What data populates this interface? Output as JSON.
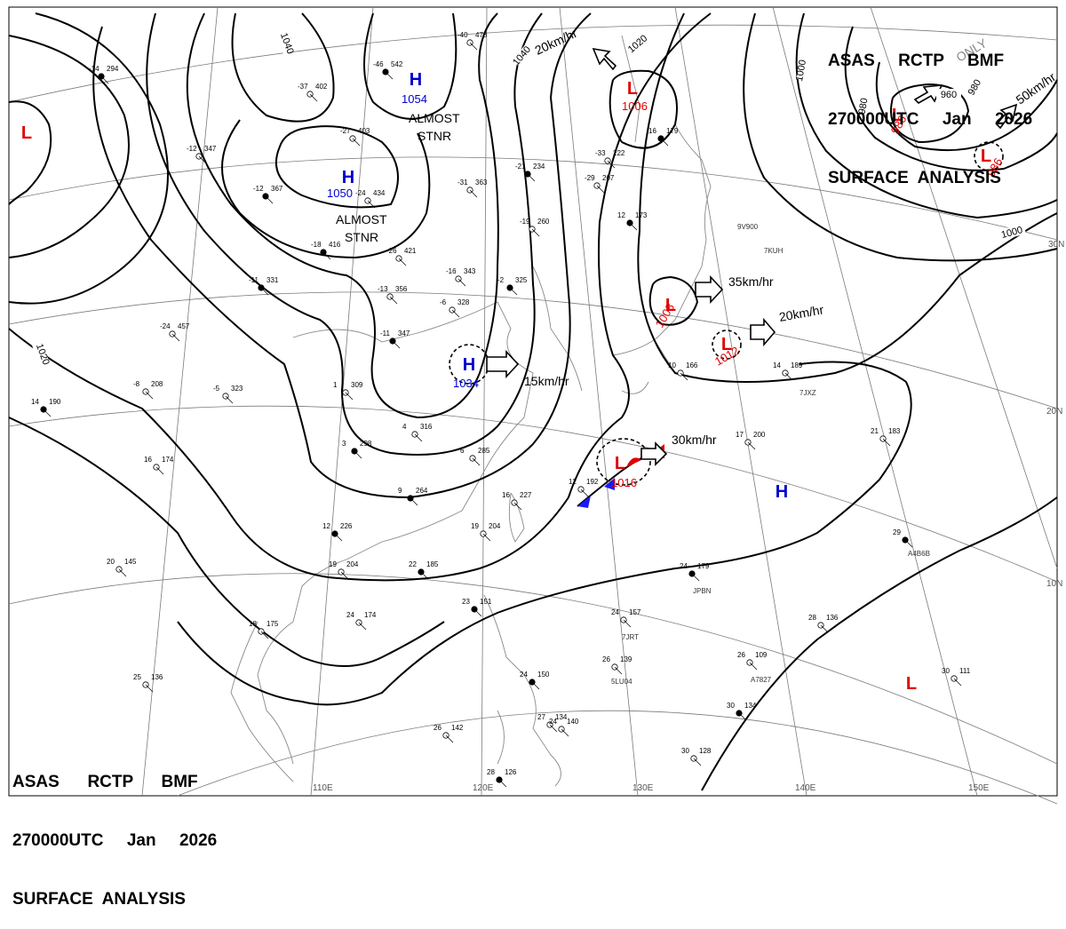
{
  "header": {
    "line1": "ASAS     RCTP     BMF",
    "line2": "270000UTC     Jan     2026",
    "line3": "SURFACE  ANALYSIS"
  },
  "footer": {
    "line1": "ASAS      RCTP      BMF",
    "line2": "270000UTC     Jan     2026",
    "line3": "SURFACE  ANALYSIS"
  },
  "watermark": "ONLY",
  "colors": {
    "low": "#e00000",
    "high": "#0000cc",
    "line": "#000000",
    "grid": "#777777",
    "coast": "#888888"
  },
  "lon_labels": [
    "110E",
    "120E",
    "130E",
    "140E",
    "150E"
  ],
  "lat_labels": [
    "30N",
    "20N",
    "10N"
  ],
  "isobar_labels": [
    "1040",
    "1040",
    "1020",
    "1020",
    "1000",
    "980",
    "980",
    "960",
    "1000"
  ],
  "highs": [
    {
      "letter": "H",
      "value": "1054",
      "note": [
        "ALMOST",
        "STNR"
      ]
    },
    {
      "letter": "H",
      "value": "1050",
      "note": [
        "ALMOST",
        "STNR"
      ]
    },
    {
      "letter": "H",
      "value": "1034",
      "motion": "15km/hr"
    },
    {
      "letter": "H",
      "value": ""
    }
  ],
  "lows": [
    {
      "letter": "L",
      "value": "1006",
      "motion": "20km/hr"
    },
    {
      "letter": "L",
      "value": "986",
      "motion": ""
    },
    {
      "letter": "L",
      "value": "986",
      "motion": "50km/hr"
    },
    {
      "letter": "L",
      "value": "1008",
      "motion": "35km/hr"
    },
    {
      "letter": "L",
      "value": "1012",
      "motion": "20km/hr"
    },
    {
      "letter": "L",
      "value": "1016",
      "motion": "30km/hr"
    },
    {
      "letter": "L",
      "value": ""
    },
    {
      "letter": "L",
      "value": ""
    }
  ],
  "ship_calls": [
    "9V900",
    "7KUH",
    "7JXZ",
    "A4B6B",
    "JPBN",
    "7JRT",
    "5LU04",
    "A7827"
  ],
  "stations": [
    {
      "temp": "-14",
      "press": "294"
    },
    {
      "temp": "-37",
      "press": "402"
    },
    {
      "temp": "-40",
      "press": "478"
    },
    {
      "temp": "-46",
      "press": "542"
    },
    {
      "temp": "-27",
      "press": "403"
    },
    {
      "temp": "-12",
      "press": "347"
    },
    {
      "temp": "-12",
      "press": "367"
    },
    {
      "temp": "-24",
      "press": "434"
    },
    {
      "temp": "-31",
      "press": "363"
    },
    {
      "temp": "-21",
      "press": "234"
    },
    {
      "temp": "-33",
      "press": "222"
    },
    {
      "temp": "-29",
      "press": "207"
    },
    {
      "temp": "-18",
      "press": "416"
    },
    {
      "temp": "-26",
      "press": "421"
    },
    {
      "temp": "-19",
      "press": "260"
    },
    {
      "temp": "-11",
      "press": "331"
    },
    {
      "temp": "-13",
      "press": "356"
    },
    {
      "temp": "-16",
      "press": "343"
    },
    {
      "temp": "-2",
      "press": "325"
    },
    {
      "temp": "-6",
      "press": "328"
    },
    {
      "temp": "-24",
      "press": "457"
    },
    {
      "temp": "-11",
      "press": "347"
    },
    {
      "temp": "-8",
      "press": "208"
    },
    {
      "temp": "-5",
      "press": "323"
    },
    {
      "temp": "14",
      "press": "190"
    },
    {
      "temp": "1",
      "press": "309"
    },
    {
      "temp": "16",
      "press": "174"
    },
    {
      "temp": "3",
      "press": "298"
    },
    {
      "temp": "4",
      "press": "316"
    },
    {
      "temp": "6",
      "press": "285"
    },
    {
      "temp": "9",
      "press": "264"
    },
    {
      "temp": "16",
      "press": "227"
    },
    {
      "temp": "19",
      "press": "204"
    },
    {
      "temp": "12",
      "press": "226"
    },
    {
      "temp": "19",
      "press": "204"
    },
    {
      "temp": "20",
      "press": "145"
    },
    {
      "temp": "22",
      "press": "185"
    },
    {
      "temp": "18",
      "press": "175"
    },
    {
      "temp": "24",
      "press": "174"
    },
    {
      "temp": "23",
      "press": "151"
    },
    {
      "temp": "25",
      "press": "136"
    },
    {
      "temp": "26",
      "press": "142"
    },
    {
      "temp": "28",
      "press": "126"
    },
    {
      "temp": "27",
      "press": "134"
    },
    {
      "temp": "24",
      "press": "140"
    },
    {
      "temp": "24",
      "press": "150"
    },
    {
      "temp": "24",
      "press": "157"
    },
    {
      "temp": "26",
      "press": "139"
    },
    {
      "temp": "24",
      "press": "179"
    },
    {
      "temp": "17",
      "press": "200"
    },
    {
      "temp": "21",
      "press": "183"
    },
    {
      "temp": "29",
      "press": ""
    },
    {
      "temp": "28",
      "press": "136"
    },
    {
      "temp": "26",
      "press": "109"
    },
    {
      "temp": "30",
      "press": "134"
    },
    {
      "temp": "30",
      "press": "111"
    },
    {
      "temp": "30",
      "press": "128"
    },
    {
      "temp": "12",
      "press": "173"
    },
    {
      "temp": "14",
      "press": "189"
    },
    {
      "temp": "10",
      "press": "166"
    },
    {
      "temp": "16",
      "press": "179"
    },
    {
      "temp": "12",
      "press": "192"
    }
  ]
}
